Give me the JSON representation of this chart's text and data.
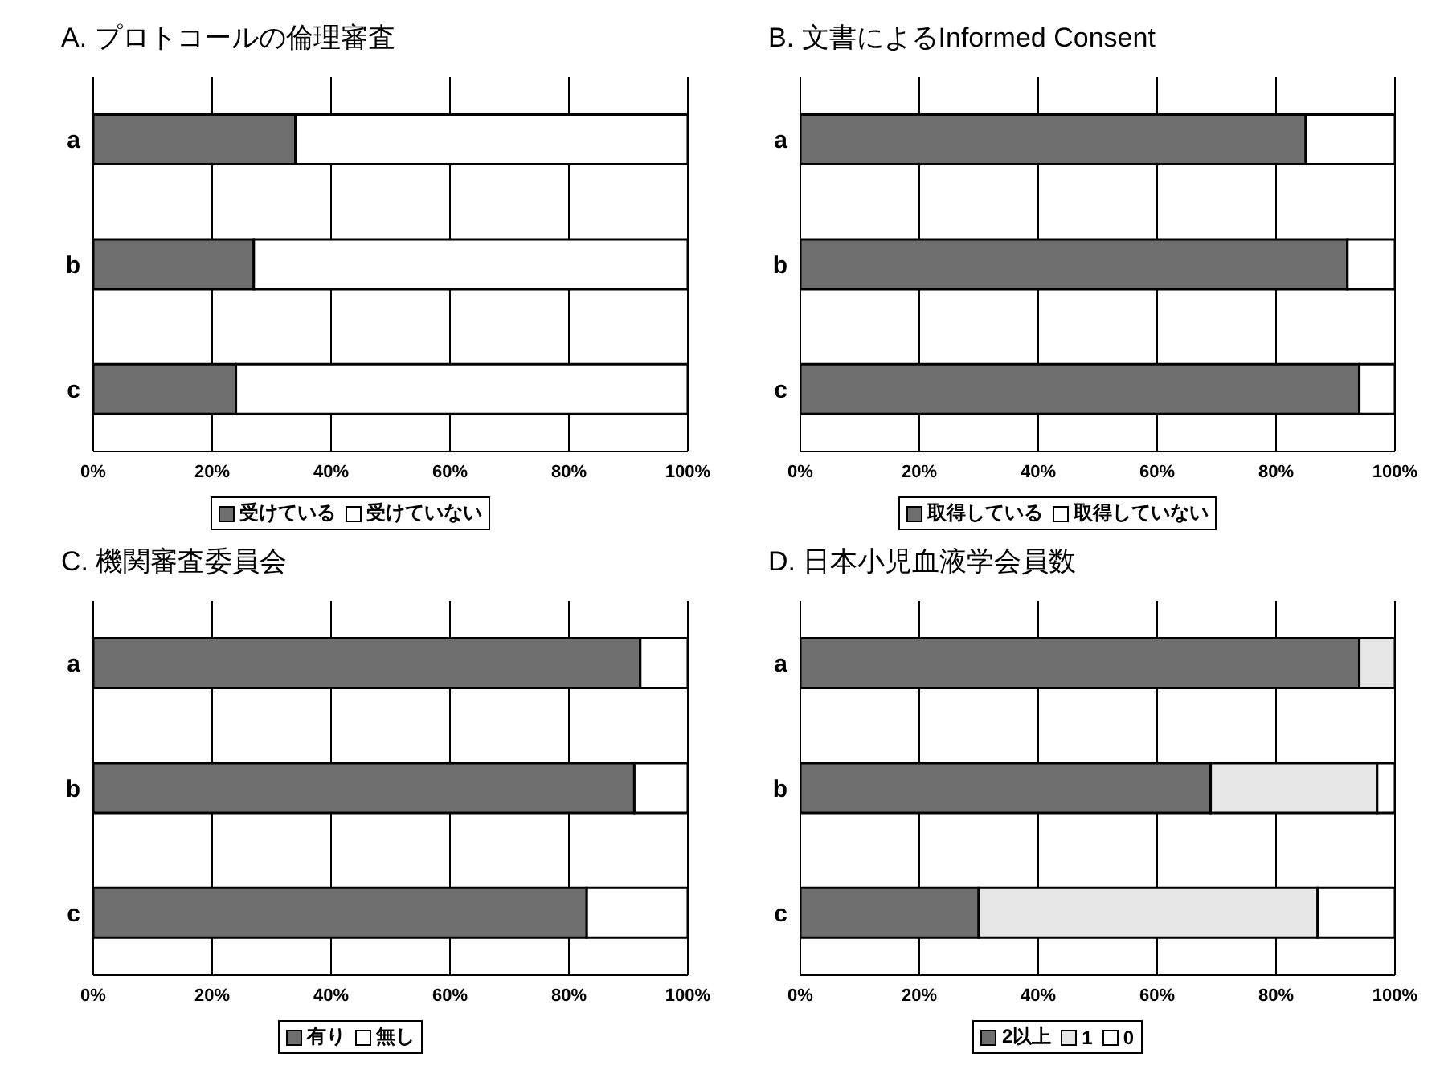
{
  "chart_data": [
    {
      "type": "bar",
      "orientation": "horizontal",
      "stacked": true,
      "title": "A. プロトコールの倫理審査",
      "categories": [
        "a",
        "b",
        "c"
      ],
      "series": [
        {
          "name": "受けている",
          "color": "#6e6e6e",
          "values": [
            34,
            27,
            24
          ]
        },
        {
          "name": "受けていない",
          "color": "#ffffff",
          "values": [
            66,
            73,
            76
          ]
        }
      ],
      "xlim": [
        0,
        100
      ],
      "xticks": [
        {
          "value": 0,
          "label": "0%"
        },
        {
          "value": 20,
          "label": "20%"
        },
        {
          "value": 40,
          "label": "40%"
        },
        {
          "value": 60,
          "label": "60%"
        },
        {
          "value": 80,
          "label": "80%"
        },
        {
          "value": 100,
          "label": "100%"
        }
      ],
      "grid": "x",
      "legend": "bottom"
    },
    {
      "type": "bar",
      "orientation": "horizontal",
      "stacked": true,
      "title": "B. 文書によるInformed Consent",
      "categories": [
        "a",
        "b",
        "c"
      ],
      "series": [
        {
          "name": "取得している",
          "color": "#6e6e6e",
          "values": [
            85,
            92,
            94
          ]
        },
        {
          "name": "取得していない",
          "color": "#ffffff",
          "values": [
            15,
            8,
            6
          ]
        }
      ],
      "xlim": [
        0,
        100
      ],
      "xticks": [
        {
          "value": 0,
          "label": "0%"
        },
        {
          "value": 20,
          "label": "20%"
        },
        {
          "value": 40,
          "label": "40%"
        },
        {
          "value": 60,
          "label": "60%"
        },
        {
          "value": 80,
          "label": "80%"
        },
        {
          "value": 100,
          "label": "100%"
        }
      ],
      "grid": "x",
      "legend": "bottom"
    },
    {
      "type": "bar",
      "orientation": "horizontal",
      "stacked": true,
      "title": "C. 機関審査委員会",
      "categories": [
        "a",
        "b",
        "c"
      ],
      "series": [
        {
          "name": "有り",
          "color": "#6e6e6e",
          "values": [
            92,
            91,
            83
          ]
        },
        {
          "name": "無し",
          "color": "#ffffff",
          "values": [
            8,
            9,
            17
          ]
        }
      ],
      "xlim": [
        0,
        100
      ],
      "xticks": [
        {
          "value": 0,
          "label": "0%"
        },
        {
          "value": 20,
          "label": "20%"
        },
        {
          "value": 40,
          "label": "40%"
        },
        {
          "value": 60,
          "label": "60%"
        },
        {
          "value": 80,
          "label": "80%"
        },
        {
          "value": 100,
          "label": "100%"
        }
      ],
      "grid": "x",
      "legend": "bottom"
    },
    {
      "type": "bar",
      "orientation": "horizontal",
      "stacked": true,
      "title": "D. 日本小児血液学会員数",
      "categories": [
        "a",
        "b",
        "c"
      ],
      "series": [
        {
          "name": "2以上",
          "color": "#6e6e6e",
          "values": [
            94,
            69,
            30
          ]
        },
        {
          "name": "1",
          "color": "#e6e6e6",
          "values": [
            6,
            28,
            57
          ]
        },
        {
          "name": "0",
          "color": "#ffffff",
          "values": [
            0,
            3,
            13
          ]
        }
      ],
      "xlim": [
        0,
        100
      ],
      "xticks": [
        {
          "value": 0,
          "label": "0%"
        },
        {
          "value": 20,
          "label": "20%"
        },
        {
          "value": 40,
          "label": "40%"
        },
        {
          "value": 60,
          "label": "60%"
        },
        {
          "value": 80,
          "label": "80%"
        },
        {
          "value": 100,
          "label": "100%"
        }
      ],
      "grid": "x",
      "legend": "bottom"
    }
  ]
}
